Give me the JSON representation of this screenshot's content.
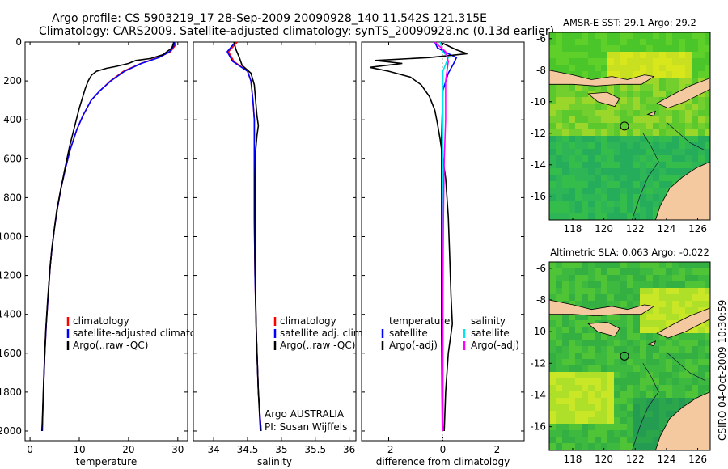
{
  "figure": {
    "title_line1": "Argo profile: CS 5903219_17 28-Sep-2009 20090928_140 11.542S 121.315E",
    "title_line2": "Climatology: CARS2009. Satellite-adjusted climatology: synTS_20090928.nc (0.13d earlier)",
    "credit_vertical": "CSIRO 04-Oct-2009 10:30:59",
    "argo_label": "Argo AUSTRALIA",
    "pi_label": "PI: Susan Wijffels"
  },
  "colors": {
    "climatology": "#ff0000",
    "satellite": "#0000ff",
    "argo": "#000000",
    "salinity_satellite": "#00e5ee",
    "salinity_argo": "#ff00ff",
    "ocean": "#2ecc40",
    "land": "#f5c9a0"
  },
  "chart_data": [
    {
      "type": "line",
      "id": "temperature",
      "xlabel": "temperature",
      "ylabel": "",
      "xlim": [
        -1,
        32
      ],
      "ylim": [
        2050,
        0
      ],
      "xticks": [
        0,
        10,
        20,
        30
      ],
      "yticks": [
        0,
        200,
        400,
        600,
        800,
        1000,
        1200,
        1400,
        1600,
        1800,
        2000
      ],
      "legend": [
        "climatology",
        "satellite-adjusted climatology",
        "Argo(..raw -QC)"
      ],
      "series": [
        {
          "name": "climatology",
          "color": "#ff0000",
          "points": [
            [
              29.6,
              0
            ],
            [
              29.4,
              20
            ],
            [
              28.5,
              50
            ],
            [
              26,
              80
            ],
            [
              22.5,
              110
            ],
            [
              19,
              150
            ],
            [
              16.3,
              200
            ],
            [
              14.2,
              250
            ],
            [
              12.4,
              300
            ],
            [
              10.7,
              380
            ],
            [
              9.5,
              450
            ],
            [
              8.2,
              550
            ],
            [
              7.2,
              650
            ],
            [
              6.3,
              750
            ],
            [
              5.6,
              850
            ],
            [
              5.0,
              950
            ],
            [
              4.5,
              1050
            ],
            [
              4.1,
              1150
            ],
            [
              3.7,
              1300
            ],
            [
              3.3,
              1450
            ],
            [
              3.0,
              1600
            ],
            [
              2.8,
              1750
            ],
            [
              2.6,
              1900
            ],
            [
              2.5,
              2000
            ]
          ]
        },
        {
          "name": "satellite-adjusted climatology",
          "color": "#0000ff",
          "points": [
            [
              29.3,
              0
            ],
            [
              29.2,
              20
            ],
            [
              28.3,
              50
            ],
            [
              26.2,
              80
            ],
            [
              22.6,
              110
            ],
            [
              19.2,
              150
            ],
            [
              16.4,
              200
            ],
            [
              14.2,
              250
            ],
            [
              12.4,
              300
            ],
            [
              10.7,
              380
            ],
            [
              9.5,
              450
            ],
            [
              8.2,
              550
            ],
            [
              7.2,
              650
            ],
            [
              6.3,
              750
            ],
            [
              5.6,
              850
            ],
            [
              5.0,
              950
            ],
            [
              4.5,
              1050
            ],
            [
              4.1,
              1150
            ],
            [
              3.7,
              1300
            ],
            [
              3.3,
              1450
            ],
            [
              3.0,
              1600
            ],
            [
              2.8,
              1750
            ],
            [
              2.6,
              1900
            ],
            [
              2.5,
              2000
            ]
          ]
        },
        {
          "name": "Argo(..raw -QC)",
          "color": "#000000",
          "points": [
            [
              29.2,
              0
            ],
            [
              28.8,
              30
            ],
            [
              27.0,
              65
            ],
            [
              24.5,
              85
            ],
            [
              21.5,
              95
            ],
            [
              20.0,
              110
            ],
            [
              17.5,
              125
            ],
            [
              15.5,
              135
            ],
            [
              13.5,
              150
            ],
            [
              12.5,
              170
            ],
            [
              11.8,
              200
            ],
            [
              11.2,
              240
            ],
            [
              10.6,
              290
            ],
            [
              10.0,
              340
            ],
            [
              9.4,
              400
            ],
            [
              8.8,
              460
            ],
            [
              8.0,
              540
            ],
            [
              7.1,
              650
            ],
            [
              6.2,
              760
            ],
            [
              5.4,
              870
            ],
            [
              4.9,
              970
            ],
            [
              4.4,
              1070
            ],
            [
              4.0,
              1180
            ],
            [
              3.6,
              1320
            ],
            [
              3.2,
              1480
            ],
            [
              2.9,
              1650
            ],
            [
              2.7,
              1800
            ],
            [
              2.5,
              1950
            ],
            [
              2.4,
              2000
            ]
          ]
        }
      ]
    },
    {
      "type": "line",
      "id": "salinity",
      "xlabel": "salinity",
      "ylabel": "",
      "xlim": [
        33.7,
        36.1
      ],
      "ylim": [
        2050,
        0
      ],
      "xticks": [
        34,
        34.5,
        35,
        35.5,
        36
      ],
      "legend": [
        "climatology",
        "satellite adj. clim.",
        "Argo(..raw -QC)"
      ],
      "series": [
        {
          "name": "climatology",
          "color": "#ff0000",
          "points": [
            [
              34.35,
              0
            ],
            [
              34.22,
              50
            ],
            [
              34.3,
              100
            ],
            [
              34.5,
              150
            ],
            [
              34.55,
              200
            ],
            [
              34.58,
              300
            ],
            [
              34.6,
              400
            ],
            [
              34.6,
              600
            ],
            [
              34.6,
              900
            ],
            [
              34.61,
              1200
            ],
            [
              34.63,
              1500
            ],
            [
              34.66,
              1800
            ],
            [
              34.7,
              2000
            ]
          ]
        },
        {
          "name": "satellite adj. clim.",
          "color": "#0000ff",
          "points": [
            [
              34.32,
              0
            ],
            [
              34.2,
              50
            ],
            [
              34.28,
              100
            ],
            [
              34.5,
              150
            ],
            [
              34.55,
              200
            ],
            [
              34.58,
              300
            ],
            [
              34.6,
              400
            ],
            [
              34.6,
              600
            ],
            [
              34.6,
              900
            ],
            [
              34.61,
              1200
            ],
            [
              34.63,
              1500
            ],
            [
              34.66,
              1800
            ],
            [
              34.7,
              2000
            ]
          ]
        },
        {
          "name": "Argo(..raw -QC)",
          "color": "#000000",
          "points": [
            [
              34.3,
              0
            ],
            [
              34.33,
              40
            ],
            [
              34.38,
              80
            ],
            [
              34.42,
              120
            ],
            [
              34.55,
              160
            ],
            [
              34.6,
              220
            ],
            [
              34.62,
              300
            ],
            [
              34.64,
              380
            ],
            [
              34.66,
              430
            ],
            [
              34.64,
              480
            ],
            [
              34.62,
              560
            ],
            [
              34.61,
              700
            ],
            [
              34.61,
              900
            ],
            [
              34.61,
              1100
            ],
            [
              34.62,
              1300
            ],
            [
              34.63,
              1500
            ],
            [
              34.66,
              1800
            ],
            [
              34.69,
              2000
            ]
          ]
        }
      ]
    },
    {
      "type": "line",
      "id": "difference",
      "xlabel": "difference from climatology",
      "ylabel": "",
      "xlim": [
        -3,
        3
      ],
      "ylim": [
        2050,
        0
      ],
      "xticks": [
        -2,
        0,
        2
      ],
      "legend": [
        "temperature",
        "satellite",
        "Argo(-adj)",
        "salinity",
        "satellite",
        "Argo(-adj)"
      ],
      "series": [
        {
          "name": "temperature satellite",
          "color": "#0000ff",
          "points": [
            [
              -0.3,
              0
            ],
            [
              -0.2,
              30
            ],
            [
              0.2,
              60
            ],
            [
              0.5,
              80
            ],
            [
              0.4,
              110
            ],
            [
              0.2,
              160
            ],
            [
              0,
              250
            ],
            [
              -0.05,
              500
            ],
            [
              -0.05,
              1000
            ],
            [
              -0.05,
              1500
            ],
            [
              -0.02,
              2000
            ]
          ]
        },
        {
          "name": "temperature Argo(-adj)",
          "color": "#000000",
          "points": [
            [
              -0.1,
              0
            ],
            [
              0.5,
              40
            ],
            [
              0.9,
              60
            ],
            [
              -0.5,
              80
            ],
            [
              -2.5,
              95
            ],
            [
              -1.5,
              110
            ],
            [
              -2.7,
              130
            ],
            [
              -2,
              150
            ],
            [
              -1.2,
              180
            ],
            [
              -0.8,
              220
            ],
            [
              -0.5,
              280
            ],
            [
              -0.3,
              350
            ],
            [
              -0.2,
              420
            ],
            [
              -0.1,
              500
            ],
            [
              0.1,
              700
            ],
            [
              0.2,
              900
            ],
            [
              0.25,
              1100
            ],
            [
              0.3,
              1300
            ],
            [
              0.35,
              1450
            ],
            [
              0.2,
              1600
            ],
            [
              0.1,
              1800
            ],
            [
              0.05,
              2000
            ]
          ]
        },
        {
          "name": "salinity satellite",
          "color": "#00e5ee",
          "points": [
            [
              -0.1,
              0
            ],
            [
              0,
              50
            ],
            [
              0.2,
              80
            ],
            [
              0,
              150
            ],
            [
              0,
              300
            ],
            [
              0,
              700
            ],
            [
              0,
              1200
            ],
            [
              0,
              1600
            ],
            [
              0,
              2000
            ]
          ]
        },
        {
          "name": "salinity Argo(-adj)",
          "color": "#ff00ff",
          "points": [
            [
              -0.3,
              0
            ],
            [
              0.1,
              50
            ],
            [
              0.2,
              100
            ],
            [
              0.1,
              200
            ],
            [
              0.1,
              400
            ],
            [
              0.05,
              600
            ],
            [
              0.02,
              900
            ],
            [
              0,
              1300
            ],
            [
              0,
              1700
            ],
            [
              0,
              2000
            ]
          ]
        }
      ]
    },
    {
      "type": "heatmap",
      "id": "map_sst",
      "title": "AMSR-E SST: 29.1  Argo: 29.2",
      "xticks": [
        118,
        120,
        122,
        124,
        126
      ],
      "yticks": [
        -6,
        -8,
        -10,
        -12,
        -14,
        -16
      ],
      "xlim": [
        116.5,
        126.8
      ],
      "ylim": [
        -17.5,
        -5.6
      ],
      "marker": {
        "lon": 121.315,
        "lat": -11.542
      }
    },
    {
      "type": "heatmap",
      "id": "map_sla",
      "title": "Altimetric SLA: 0.063  Argo: -0.022",
      "xticks": [
        118,
        120,
        122,
        124,
        126
      ],
      "yticks": [
        -6,
        -8,
        -10,
        -12,
        -14,
        -16
      ],
      "xlim": [
        116.5,
        126.8
      ],
      "ylim": [
        -17.5,
        -5.6
      ],
      "marker": {
        "lon": 121.315,
        "lat": -11.542
      }
    }
  ]
}
